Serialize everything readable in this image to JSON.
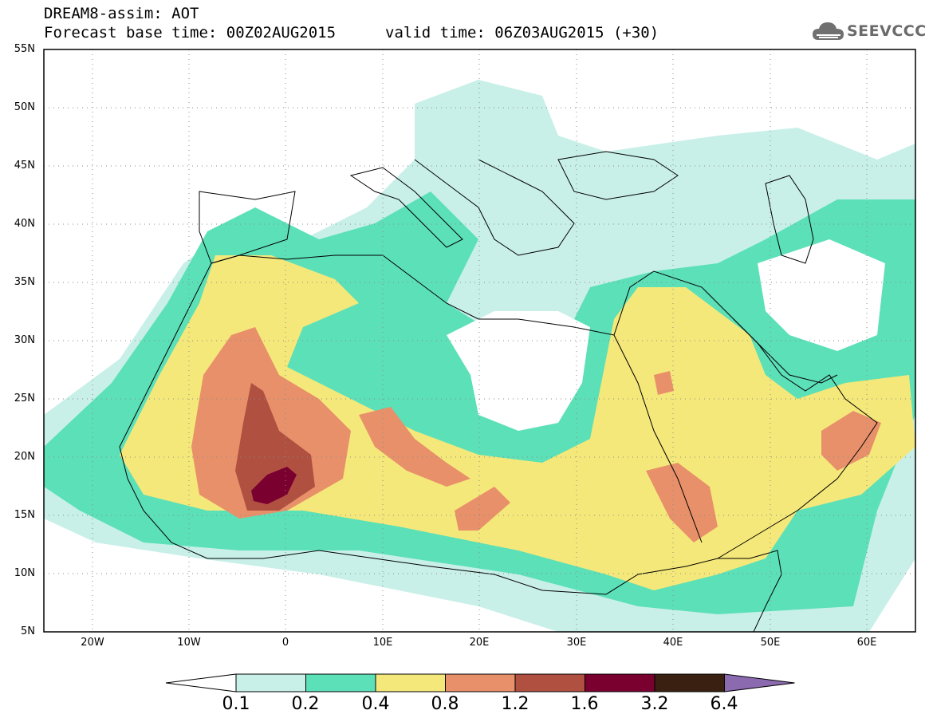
{
  "header": {
    "title_line1": "DREAM8-assim: AOT",
    "title_line2": "Forecast base time: 00Z02AUG2015",
    "valid_time": "valid time: 06Z03AUG2015 (+30)"
  },
  "logo": {
    "text": "SEEVCCC",
    "icon": "cloud-icon"
  },
  "axes": {
    "lat_labels": [
      "55N",
      "50N",
      "45N",
      "40N",
      "35N",
      "30N",
      "25N",
      "20N",
      "15N",
      "10N",
      "5N"
    ],
    "lon_labels": [
      "20W",
      "10W",
      "0",
      "10E",
      "20E",
      "30E",
      "40E",
      "50E",
      "60E"
    ],
    "lat_range": [
      5,
      55
    ],
    "lon_range": [
      -25,
      65
    ],
    "grid": "dotted"
  },
  "legend": {
    "labels": [
      "0.1",
      "0.2",
      "0.4",
      "0.8",
      "1.2",
      "1.6",
      "3.2",
      "6.4"
    ],
    "colors": [
      "#ffffff",
      "#c8f0e8",
      "#5ce0b8",
      "#f5e87a",
      "#e8906a",
      "#b05040",
      "#7a0030",
      "#3a2010",
      "#8c6ab0"
    ]
  }
}
